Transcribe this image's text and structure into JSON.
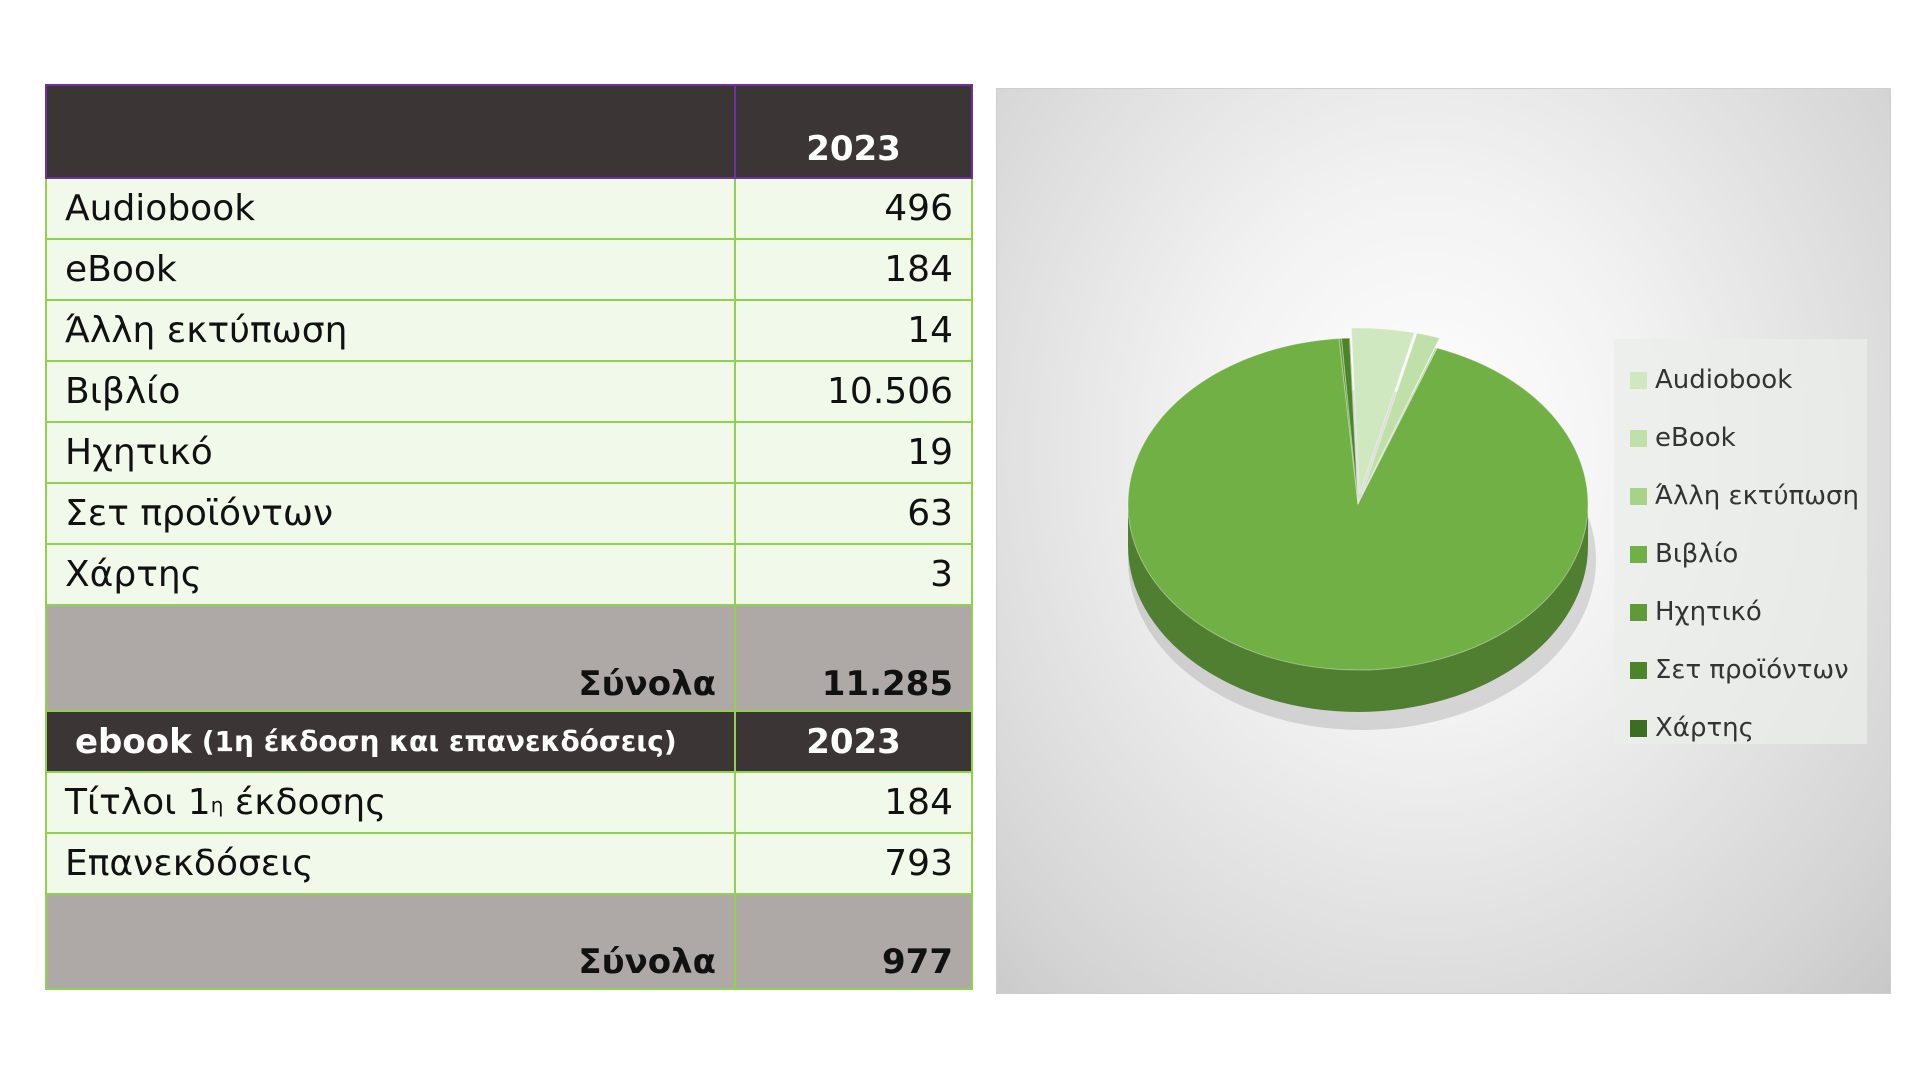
{
  "table1": {
    "header_year": "2023",
    "rows": [
      {
        "label": "Audiobook",
        "value": "496"
      },
      {
        "label": "eBook",
        "value": "184"
      },
      {
        "label": "Άλλη εκτύπωση",
        "value": "14"
      },
      {
        "label": "Βιβλίο",
        "value": "10.506"
      },
      {
        "label": "Ηχητικό",
        "value": "19"
      },
      {
        "label": "Σετ προϊόντων",
        "value": "63"
      },
      {
        "label": "Χάρτης",
        "value": "3"
      }
    ],
    "total_label": "Σύνολα",
    "total_value": "11.285"
  },
  "table2": {
    "header_title": "ebook",
    "header_subtitle": "(1η έκδοση και επανεκδόσεις)",
    "header_year": "2023",
    "row1_label": "Τίτλοι 1",
    "row1_sup": "η",
    "row1_label_rest": " έκδοσης",
    "row1_value": "184",
    "row2_label": "Επανεκδόσεις",
    "row2_value": "793",
    "total_label": "Σύνολα",
    "total_value": "977"
  },
  "chart_data": {
    "type": "pie",
    "style": "3d",
    "title": "",
    "categories": [
      "Audiobook",
      "eBook",
      "Άλλη εκτύπωση",
      "Βιβλίο",
      "Ηχητικό",
      "Σετ προϊόντων",
      "Χάρτης"
    ],
    "values": [
      496,
      184,
      14,
      10506,
      19,
      63,
      3
    ],
    "colors": [
      "#cfe8c0",
      "#bfe0a8",
      "#a6d486",
      "#71b045",
      "#5f9a36",
      "#4d8329",
      "#3d6d20"
    ],
    "exploded": [
      "Audiobook",
      "eBook"
    ],
    "legend_position": "right"
  }
}
